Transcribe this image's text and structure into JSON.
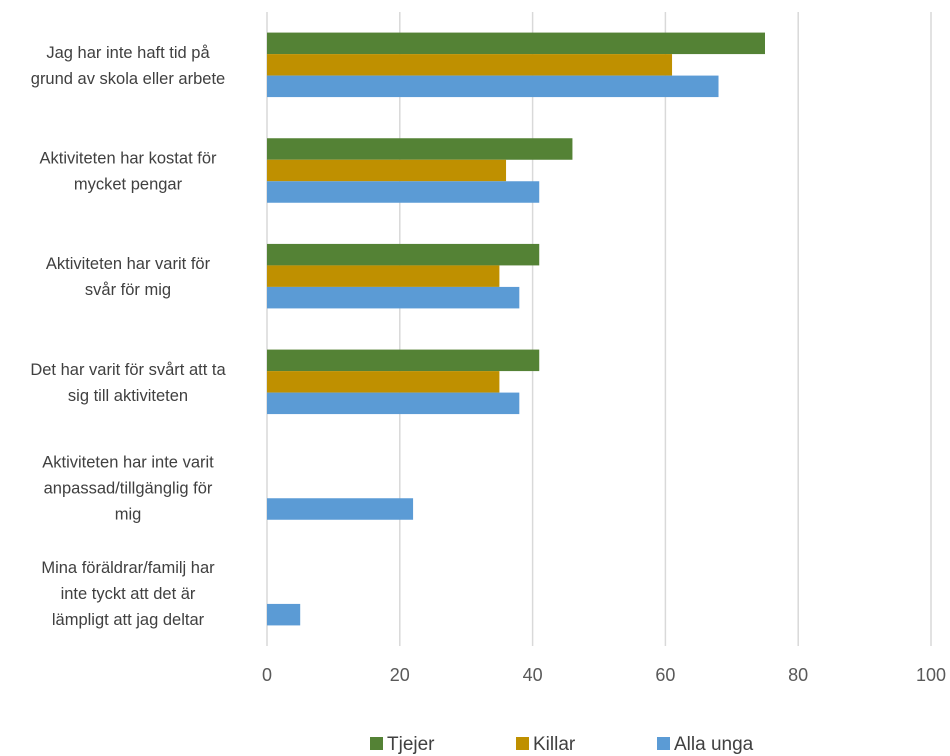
{
  "chart_data": {
    "type": "bar",
    "orientation": "horizontal",
    "categories": [
      [
        "Jag har inte haft tid på",
        "grund av skola eller arbete"
      ],
      [
        "Aktiviteten har kostat för",
        "mycket pengar"
      ],
      [
        "Aktiviteten har varit för",
        "svår för mig"
      ],
      [
        "Det har varit för svårt att ta",
        "sig till aktiviteten"
      ],
      [
        "Aktiviteten har inte varit",
        "anpassad/tillgänglig för",
        "mig"
      ],
      [
        "Mina föräldrar/familj har",
        "inte tyckt att det är",
        "lämpligt att jag deltar"
      ]
    ],
    "series": [
      {
        "name": "Tjejer",
        "color": "#548235",
        "values": [
          75,
          46,
          41,
          41,
          null,
          null
        ]
      },
      {
        "name": "Killar",
        "color": "#BF9000",
        "values": [
          61,
          36,
          35,
          35,
          null,
          null
        ]
      },
      {
        "name": "Alla unga",
        "color": "#5B9BD5",
        "values": [
          68,
          41,
          38,
          38,
          22,
          5
        ]
      }
    ],
    "xlim": [
      0,
      100
    ],
    "xticks": [
      "0",
      "20",
      "40",
      "60",
      "80",
      "100"
    ],
    "grid": true,
    "legend_position": "bottom"
  }
}
